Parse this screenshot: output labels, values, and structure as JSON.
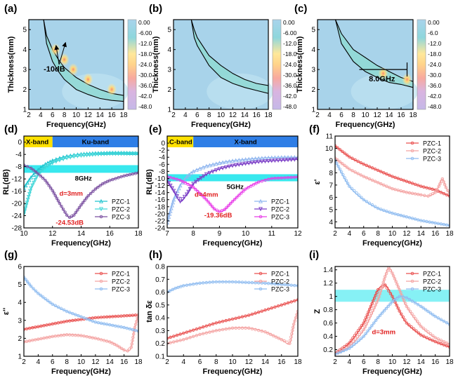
{
  "chart_data": [
    {
      "id": "a",
      "type": "heatmap",
      "panel_label": "(a)",
      "xlabel": "Frequency(GHz)",
      "ylabel": "Thickness(mm)",
      "xlim": [
        2,
        18
      ],
      "ylim": [
        1,
        5.5
      ],
      "xticks": [
        2,
        4,
        6,
        8,
        10,
        12,
        14,
        16,
        18
      ],
      "yticks": [
        1,
        2,
        3,
        4,
        5
      ],
      "colorbar": {
        "ticks": [
          "0.00",
          "-6.00",
          "-12.0",
          "-18.0",
          "-24.0",
          "-30.0",
          "-36.0",
          "-42.0",
          "-48.0"
        ]
      },
      "band": {
        "x": [
          4.5,
          5,
          6,
          7,
          8,
          10,
          12,
          14,
          16,
          18
        ],
        "upper": [
          5.5,
          4.7,
          4.0,
          3.5,
          3.1,
          2.6,
          2.25,
          2.0,
          1.8,
          1.7
        ],
        "lower": [
          5.5,
          4.3,
          3.4,
          2.9,
          2.5,
          2.0,
          1.75,
          1.55,
          1.45,
          1.4
        ]
      },
      "hotspots": [
        {
          "x": 6.5,
          "y": 4.0
        },
        {
          "x": 8.0,
          "y": 3.5
        },
        {
          "x": 9.5,
          "y": 3.0
        },
        {
          "x": 12.0,
          "y": 2.5
        },
        {
          "x": 16.0,
          "y": 2.0
        }
      ],
      "annotations": [
        {
          "text": "-10dB",
          "x": 4.5,
          "y": 2.9
        }
      ]
    },
    {
      "id": "b",
      "type": "heatmap",
      "panel_label": "(b)",
      "xlabel": "Frequency(GHz)",
      "ylabel": "Thickness(mm)",
      "xlim": [
        2,
        18
      ],
      "ylim": [
        1,
        5.5
      ],
      "xticks": [
        2,
        4,
        6,
        8,
        10,
        12,
        14,
        16,
        18
      ],
      "yticks": [
        1,
        2,
        3,
        4,
        5
      ],
      "colorbar": {
        "ticks": [
          "0.00",
          "-6.00",
          "-12.0",
          "-18.0",
          "-24.0",
          "-30.0",
          "-36.0",
          "-42.0",
          "-48.0"
        ]
      },
      "band": {
        "x": [
          5,
          5.5,
          6,
          8,
          10,
          12,
          14,
          16,
          18
        ],
        "upper": [
          5.5,
          5.0,
          4.6,
          3.7,
          3.2,
          2.8,
          2.5,
          2.3,
          2.2
        ],
        "lower": [
          5.5,
          4.6,
          4.2,
          3.2,
          2.6,
          2.3,
          2.1,
          1.95,
          1.8
        ]
      },
      "hotspots": [],
      "annotations": []
    },
    {
      "id": "c",
      "type": "heatmap",
      "panel_label": "(c)",
      "xlabel": "Frequency(GHz)",
      "ylabel": "Thickness(mm)",
      "xlim": [
        2,
        18
      ],
      "ylim": [
        1,
        5.5
      ],
      "xticks": [
        2,
        4,
        6,
        8,
        10,
        12,
        14,
        16,
        18
      ],
      "yticks": [
        1,
        2,
        3,
        4,
        5
      ],
      "colorbar": {
        "ticks": [
          "0.00",
          "-6.0",
          "-12.0",
          "-18.0",
          "-24.0",
          "-30.0",
          "-36.0",
          "-42.0",
          "-48.0"
        ]
      },
      "band": {
        "x": [
          5,
          6,
          8,
          10,
          12,
          14,
          16,
          18
        ],
        "upper": [
          5.5,
          4.8,
          4.0,
          3.6,
          3.2,
          2.9,
          2.6,
          2.4
        ],
        "lower": [
          5.5,
          4.3,
          3.4,
          2.9,
          2.6,
          2.35,
          2.25,
          2.1
        ]
      },
      "hotspots": [
        {
          "x": 13.0,
          "y": 2.8
        },
        {
          "x": 17.0,
          "y": 2.5
        }
      ],
      "bracket": {
        "x1": 9.0,
        "x2": 17.0,
        "y": 3.0
      },
      "annotations": [
        {
          "text": "8.0GHz",
          "x": 10.6,
          "y": 2.4
        }
      ]
    },
    {
      "id": "d",
      "type": "line",
      "panel_label": "(d)",
      "xlabel": "Frequency(GHz)",
      "ylabel": "RL(dB)",
      "xlim": [
        10,
        18
      ],
      "ylim": [
        -28,
        2
      ],
      "xticks": [
        10,
        12,
        14,
        16,
        18
      ],
      "yticks": [
        0,
        -4,
        -8,
        -12,
        -16,
        -20,
        -24,
        -28
      ],
      "bands": [
        {
          "label": "X-band",
          "from": 10,
          "to": 12
        },
        {
          "label": "Ku-band",
          "from": 12,
          "to": 18
        }
      ],
      "highlight": {
        "from": -10,
        "to": -7.5,
        "label": "8GHz"
      },
      "annotations": [
        {
          "text": "d=3mm",
          "x": 13.3,
          "y": -17.5
        },
        {
          "text": "-24.53dB",
          "x": 13.2,
          "y": -27
        }
      ],
      "series": [
        {
          "name": "PZC-1",
          "color": "#1fc4cf",
          "marker": "triangle",
          "x": [
            10,
            10.5,
            11,
            11.5,
            12,
            12.5,
            13,
            13.5,
            14,
            15,
            16,
            17,
            18
          ],
          "y": [
            -15,
            -11.5,
            -9,
            -7.2,
            -6,
            -5.2,
            -4.6,
            -4.2,
            -3.9,
            -3.6,
            -3.5,
            -3.5,
            -3.6
          ]
        },
        {
          "name": "PZC-2",
          "color": "#40d6d8",
          "marker": "triangle-down",
          "x": [
            10,
            10.5,
            11,
            11.5,
            12,
            12.5,
            13,
            13.5,
            14,
            15,
            16,
            17,
            18
          ],
          "y": [
            -23.5,
            -15,
            -10.5,
            -8.2,
            -6.8,
            -5.9,
            -5.2,
            -4.7,
            -4.4,
            -4,
            -3.8,
            -3.8,
            -3.8
          ]
        },
        {
          "name": "PZC-3",
          "color": "#7a4fa0",
          "marker": "circle",
          "x": [
            10,
            10.5,
            11,
            11.5,
            12,
            12.5,
            13,
            13.2,
            13.5,
            14,
            14.5,
            15,
            15.5,
            16,
            17,
            18
          ],
          "y": [
            -7.5,
            -8.5,
            -10.3,
            -12.5,
            -15.8,
            -20,
            -23.8,
            -24.53,
            -23.8,
            -20.5,
            -17.5,
            -15.3,
            -13.6,
            -12.5,
            -11,
            -10
          ]
        }
      ]
    },
    {
      "id": "e",
      "type": "line",
      "panel_label": "(e)",
      "xlabel": "Frequency(GHz)",
      "ylabel": "RL(dB)",
      "xlim": [
        7,
        12
      ],
      "ylim": [
        -24,
        2
      ],
      "xticks": [
        7,
        8,
        9,
        10,
        11,
        12
      ],
      "yticks": [
        0,
        -2,
        -4,
        -6,
        -8,
        -10,
        -12,
        -14,
        -16,
        -18,
        -20,
        -22,
        -24
      ],
      "bands": [
        {
          "label": "C-band",
          "from": 7,
          "to": 8
        },
        {
          "label": "X-band",
          "from": 8,
          "to": 12
        }
      ],
      "highlight": {
        "from": -10.8,
        "to": -8.8,
        "label": "5GHz"
      },
      "annotations": [
        {
          "text": "d=4mm",
          "x": 8.5,
          "y": -15.2
        },
        {
          "text": "-19.36dB",
          "x": 8.95,
          "y": -21
        }
      ],
      "series": [
        {
          "name": "PZC-1",
          "color": "#8fb6ef",
          "marker": "triangle",
          "x": [
            7,
            7.25,
            7.5,
            7.75,
            8,
            8.5,
            9,
            9.5,
            10,
            10.5,
            11,
            11.5,
            12
          ],
          "y": [
            -22.5,
            -16,
            -12,
            -9.5,
            -8,
            -6.5,
            -5.6,
            -5,
            -4.6,
            -4.3,
            -4.1,
            -4,
            -4
          ]
        },
        {
          "name": "PZC-2",
          "color": "#7a3cc6",
          "marker": "triangle-down",
          "x": [
            7,
            7.25,
            7.5,
            7.75,
            8,
            8.5,
            9,
            9.5,
            10,
            10.5,
            11,
            11.5,
            12
          ],
          "y": [
            -10.5,
            -13.5,
            -16.5,
            -14.5,
            -11.5,
            -8.8,
            -7.3,
            -6.4,
            -5.8,
            -5.3,
            -5,
            -4.8,
            -4.6
          ]
        },
        {
          "name": "PZC-3",
          "color": "#e83de8",
          "marker": "circle",
          "x": [
            7,
            7.5,
            8,
            8.5,
            8.8,
            9,
            9.2,
            9.5,
            10,
            10.5,
            11,
            11.5,
            12
          ],
          "y": [
            -9.5,
            -10.5,
            -12.5,
            -16,
            -18.6,
            -19.36,
            -18.8,
            -16.5,
            -13,
            -11,
            -10,
            -9.8,
            -9.6
          ]
        }
      ]
    },
    {
      "id": "f",
      "type": "line",
      "panel_label": "(f)",
      "xlabel": "Frequency(GHz)",
      "ylabel": "ε'",
      "xlim": [
        2,
        18
      ],
      "ylim": [
        3.5,
        11
      ],
      "xticks": [
        2,
        4,
        6,
        8,
        10,
        12,
        14,
        16,
        18
      ],
      "yticks": [
        4,
        5,
        6,
        7,
        8,
        9,
        10,
        11
      ],
      "series": [
        {
          "name": "PZC-1",
          "color": "#e9504f",
          "marker": "circle",
          "x": [
            2,
            4,
            6,
            8,
            10,
            12,
            14,
            16,
            18
          ],
          "y": [
            10.2,
            9.3,
            8.7,
            8.2,
            7.7,
            7.3,
            6.9,
            6.6,
            6.1
          ]
        },
        {
          "name": "PZC-2",
          "color": "#f4a3a2",
          "marker": "circle",
          "x": [
            2,
            4,
            6,
            8,
            10,
            12,
            14,
            15,
            16,
            16.5,
            17,
            17.5,
            18
          ],
          "y": [
            9.2,
            8.3,
            7.7,
            7.2,
            6.7,
            6.4,
            6.2,
            6.1,
            6.4,
            6.9,
            7.5,
            6.8,
            6.3
          ]
        },
        {
          "name": "PZC-3",
          "color": "#8fbcf0",
          "marker": "circle",
          "x": [
            2,
            4,
            6,
            8,
            10,
            12,
            14,
            16,
            18
          ],
          "y": [
            9.0,
            6.9,
            5.8,
            5.1,
            4.7,
            4.4,
            4.1,
            3.9,
            3.7
          ]
        }
      ]
    },
    {
      "id": "g",
      "type": "line",
      "panel_label": "(g)",
      "xlabel": "Frequency(GHz)",
      "ylabel": "ε''",
      "xlim": [
        2,
        18
      ],
      "ylim": [
        1,
        6
      ],
      "xticks": [
        2,
        4,
        6,
        8,
        10,
        12,
        14,
        16,
        18
      ],
      "yticks": [
        1,
        2,
        3,
        4,
        5,
        6
      ],
      "series": [
        {
          "name": "PZC-1",
          "color": "#e9504f",
          "marker": "circle",
          "x": [
            2,
            4,
            6,
            8,
            10,
            12,
            14,
            16,
            18
          ],
          "y": [
            2.5,
            2.65,
            2.8,
            2.95,
            3.05,
            3.15,
            3.2,
            3.25,
            3.3
          ]
        },
        {
          "name": "PZC-2",
          "color": "#f4a3a2",
          "marker": "circle",
          "x": [
            2,
            4,
            6,
            8,
            10,
            12,
            14,
            15,
            16,
            16.5,
            17,
            17.5,
            18
          ],
          "y": [
            1.8,
            1.95,
            2.1,
            2.2,
            2.15,
            2.0,
            1.8,
            1.6,
            1.35,
            1.3,
            1.5,
            2.6,
            3.3
          ]
        },
        {
          "name": "PZC-3",
          "color": "#8fbcf0",
          "marker": "circle",
          "x": [
            2,
            3,
            4,
            6,
            8,
            10,
            12,
            14,
            16,
            18
          ],
          "y": [
            5.4,
            4.9,
            4.5,
            3.9,
            3.5,
            3.2,
            2.9,
            2.75,
            2.6,
            2.4
          ]
        }
      ]
    },
    {
      "id": "h",
      "type": "line",
      "panel_label": "(h)",
      "xlabel": "Frequency(GHz)",
      "ylabel": "tan δε",
      "xlim": [
        2,
        18
      ],
      "ylim": [
        0.1,
        0.8
      ],
      "xticks": [
        2,
        4,
        6,
        8,
        10,
        12,
        14,
        16,
        18
      ],
      "yticks": [
        0.1,
        0.2,
        0.3,
        0.4,
        0.5,
        0.6,
        0.7,
        0.8
      ],
      "series": [
        {
          "name": "PZC-1",
          "color": "#e9504f",
          "marker": "circle",
          "x": [
            2,
            4,
            6,
            8,
            10,
            12,
            14,
            16,
            18
          ],
          "y": [
            0.24,
            0.28,
            0.32,
            0.36,
            0.39,
            0.42,
            0.46,
            0.5,
            0.54
          ]
        },
        {
          "name": "PZC-2",
          "color": "#f4a3a2",
          "marker": "circle",
          "x": [
            2,
            4,
            6,
            8,
            10,
            12,
            14,
            16,
            17,
            17.5,
            18
          ],
          "y": [
            0.2,
            0.23,
            0.27,
            0.3,
            0.32,
            0.32,
            0.29,
            0.23,
            0.2,
            0.35,
            0.45
          ]
        },
        {
          "name": "PZC-3",
          "color": "#8fbcf0",
          "marker": "circle",
          "x": [
            2,
            3,
            4,
            6,
            8,
            10,
            12,
            14,
            16,
            18
          ],
          "y": [
            0.6,
            0.63,
            0.65,
            0.67,
            0.68,
            0.68,
            0.675,
            0.67,
            0.66,
            0.65
          ]
        }
      ]
    },
    {
      "id": "i",
      "type": "line",
      "panel_label": "(i)",
      "xlabel": "Frequency(GHz)",
      "ylabel": "Z",
      "xlim": [
        2,
        18
      ],
      "ylim": [
        0.1,
        1.45
      ],
      "xticks": [
        2,
        4,
        6,
        8,
        10,
        12,
        14,
        16,
        18
      ],
      "yticks": [
        0.2,
        0.4,
        0.6,
        0.8,
        1.0,
        1.2,
        1.4
      ],
      "highlight": {
        "from": 0.92,
        "to": 1.1,
        "label": ""
      },
      "annotations": [
        {
          "text": "d=3mm",
          "x": 8.8,
          "y": 0.43
        }
      ],
      "series": [
        {
          "name": "PZC-1",
          "color": "#e9504f",
          "marker": "circle",
          "x": [
            2,
            4,
            6,
            7,
            8,
            9,
            10,
            11,
            12,
            14,
            16,
            18
          ],
          "y": [
            0.14,
            0.3,
            0.6,
            0.85,
            1.1,
            1.17,
            1.0,
            0.78,
            0.6,
            0.42,
            0.32,
            0.24
          ]
        },
        {
          "name": "PZC-2",
          "color": "#f4a3a2",
          "marker": "circle",
          "x": [
            2,
            4,
            6,
            8,
            9,
            9.5,
            10,
            11,
            12,
            14,
            16,
            18
          ],
          "y": [
            0.13,
            0.25,
            0.5,
            0.95,
            1.3,
            1.43,
            1.35,
            1.1,
            0.85,
            0.55,
            0.38,
            0.28
          ]
        },
        {
          "name": "PZC-3",
          "color": "#8fbcf0",
          "marker": "circle",
          "x": [
            2,
            4,
            6,
            8,
            10,
            11,
            12,
            14,
            16,
            18
          ],
          "y": [
            0.13,
            0.22,
            0.4,
            0.68,
            0.92,
            1.0,
            0.98,
            0.85,
            0.7,
            0.58
          ]
        }
      ]
    }
  ]
}
